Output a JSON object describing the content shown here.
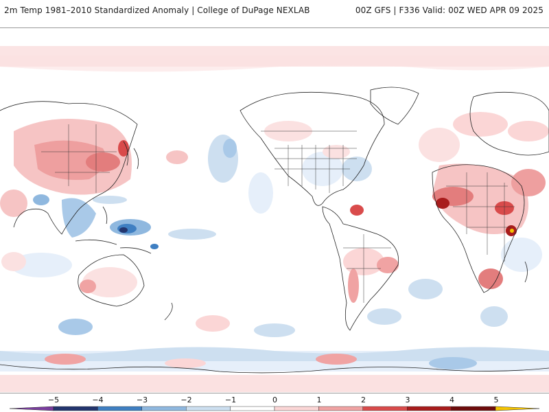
{
  "header": {
    "title_left": "2m Temp 1981–2010 Standardized Anomaly | College of DuPage NEXLAB",
    "title_right": "00Z GFS | F336 Valid: 00Z WED APR 09 2025"
  },
  "map": {
    "projection": "Plate Carree, centered on Pacific",
    "variable": "2m temperature standardized anomaly"
  },
  "colorbar": {
    "ticks": [
      "−5",
      "−4",
      "−3",
      "−2",
      "−1",
      "0",
      "1",
      "2",
      "3",
      "4",
      "5"
    ],
    "colors": [
      "#7a3d9f",
      "#23356e",
      "#3f7fc2",
      "#8fb8df",
      "#cddff0",
      "#ffffff",
      "#fbd6d6",
      "#f0a3a3",
      "#d94b4b",
      "#a81c1c",
      "#6e0c0c",
      "#f5c400"
    ]
  }
}
